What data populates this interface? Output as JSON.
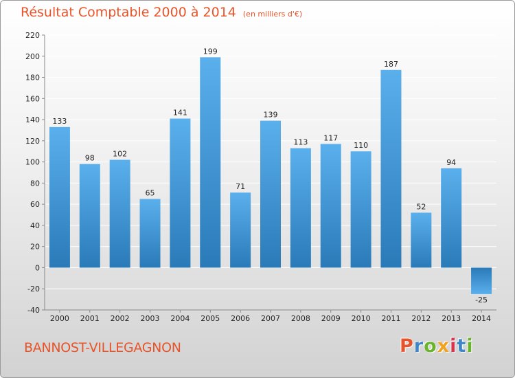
{
  "header": {
    "title": "Résultat Comptable 2000 à 2014",
    "subtitle": "(en milliers d'€)"
  },
  "footer": {
    "commune": "BANNOST-VILLEGAGNON",
    "brand": "Proxiti"
  },
  "colors": {
    "title": "#e8542a",
    "bar_top": "#5ab0ec",
    "bar_bottom": "#2a7ab8",
    "grid": "#ffffff",
    "brand_letters": [
      "#e8542a",
      "#3e86c8",
      "#6ab42d",
      "#f2a21e",
      "#d8344a",
      "#3e86c8",
      "#6ab42d"
    ]
  },
  "chart_data": {
    "type": "bar",
    "title": "Résultat Comptable 2000 à 2014",
    "subtitle": "(en milliers d'€)",
    "xlabel": "",
    "ylabel": "",
    "categories": [
      "2000",
      "2001",
      "2002",
      "2003",
      "2004",
      "2005",
      "2006",
      "2007",
      "2008",
      "2009",
      "2010",
      "2011",
      "2012",
      "2013",
      "2014"
    ],
    "values": [
      133,
      98,
      102,
      65,
      141,
      199,
      71,
      139,
      113,
      117,
      110,
      187,
      52,
      94,
      -25
    ],
    "data_labels": [
      "133",
      "98",
      "102",
      "65",
      "141",
      "199",
      "71",
      "139",
      "113",
      "117",
      "110",
      "187",
      "52",
      "94",
      "-25"
    ],
    "ylim": [
      -40,
      220
    ],
    "yticks": [
      -40,
      -20,
      0,
      20,
      40,
      60,
      80,
      100,
      120,
      140,
      160,
      180,
      200,
      220
    ],
    "ytick_labels": [
      "-40",
      "-20",
      "0",
      "20",
      "40",
      "60",
      "80",
      "100",
      "120",
      "140",
      "160",
      "180",
      "200",
      "220"
    ],
    "grid": true,
    "legend": "none"
  }
}
